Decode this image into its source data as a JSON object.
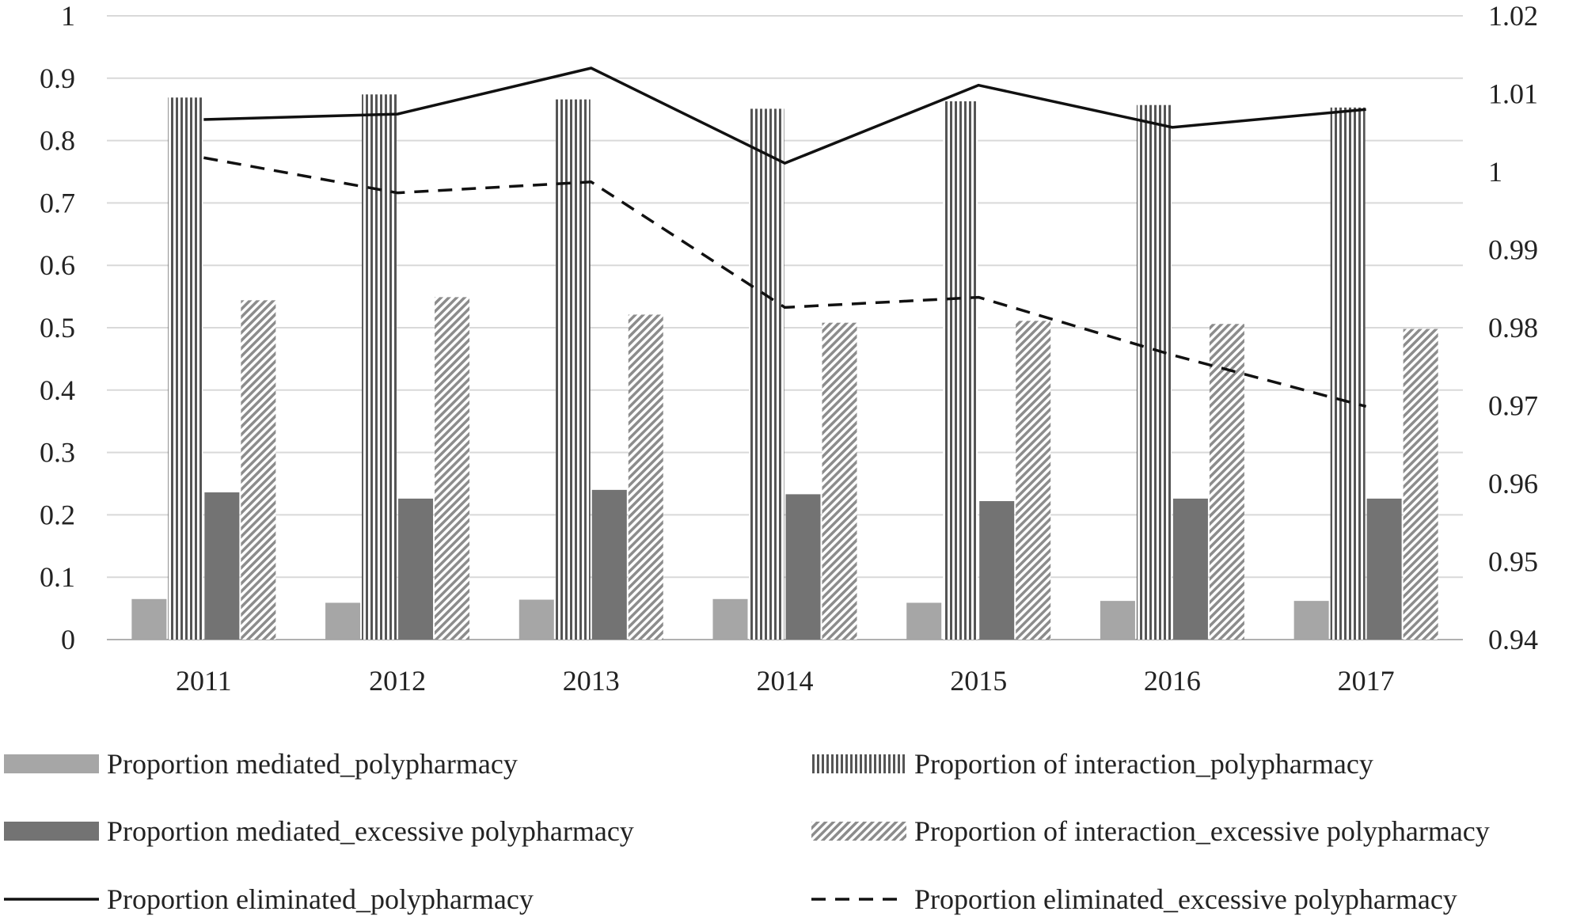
{
  "chart_data": {
    "type": "bar",
    "categories": [
      "2011",
      "2012",
      "2013",
      "2014",
      "2015",
      "2016",
      "2017"
    ],
    "series": [
      {
        "name": "Proportion mediated_polypharmacy",
        "kind": "bar",
        "axis": "left",
        "pattern": "solid-light",
        "values": [
          0.065,
          0.059,
          0.064,
          0.065,
          0.059,
          0.062,
          0.062
        ]
      },
      {
        "name": "Proportion of interaction_polypharmacy",
        "kind": "bar",
        "axis": "left",
        "pattern": "vertical-stripes",
        "values": [
          0.869,
          0.874,
          0.866,
          0.851,
          0.863,
          0.857,
          0.853
        ]
      },
      {
        "name": "Proportion mediated_excessive polypharmacy",
        "kind": "bar",
        "axis": "left",
        "pattern": "solid-dark",
        "values": [
          0.236,
          0.226,
          0.24,
          0.233,
          0.222,
          0.226,
          0.226
        ]
      },
      {
        "name": "Proportion of interaction_excessive polypharmacy",
        "kind": "bar",
        "axis": "left",
        "pattern": "diagonal-stripes",
        "values": [
          0.544,
          0.549,
          0.521,
          0.508,
          0.511,
          0.506,
          0.498
        ]
      },
      {
        "name": "Proportion eliminated_polypharmacy",
        "kind": "line",
        "axis": "right",
        "style": "solid",
        "values": [
          1.0067,
          1.0074,
          1.0133,
          1.0011,
          1.0111,
          1.0057,
          1.008
        ]
      },
      {
        "name": "Proportion eliminated_excessive polypharmacy",
        "kind": "line",
        "axis": "right",
        "style": "dashed",
        "values": [
          1.0018,
          0.9973,
          0.9987,
          0.9826,
          0.9839,
          0.9765,
          0.9699
        ]
      }
    ],
    "y_left": {
      "min": 0,
      "max": 1,
      "step": 0.1,
      "tick_labels": [
        "0",
        "0.1",
        "0.2",
        "0.3",
        "0.4",
        "0.5",
        "0.6",
        "0.7",
        "0.8",
        "0.9",
        "1"
      ]
    },
    "y_right": {
      "min": 0.94,
      "max": 1.02,
      "step": 0.01,
      "tick_labels": [
        "0.94",
        "0.95",
        "0.96",
        "0.97",
        "0.98",
        "0.99",
        "1",
        "1.01",
        "1.02"
      ]
    },
    "grid": true,
    "legend_position": "bottom",
    "title": "",
    "xlabel": "",
    "ylabel": ""
  },
  "colors": {
    "light_bar": "#a6a6a6",
    "dark_bar": "#737373",
    "stripe": "#5a5a5a",
    "diag": "#8c8c8c",
    "line": "#111111",
    "grid": "#d9d9d9",
    "axis": "#b0b0b0"
  }
}
